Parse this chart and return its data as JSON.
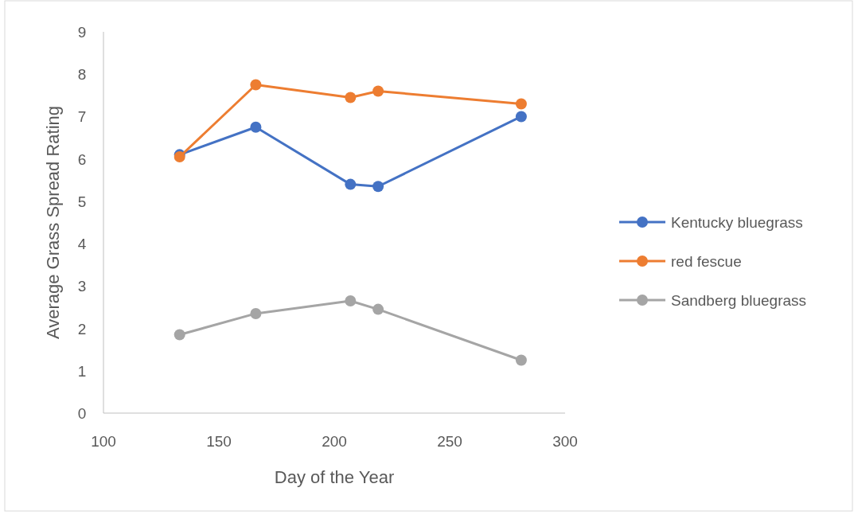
{
  "chart_data": {
    "type": "line",
    "xlabel": "Day of the Year",
    "ylabel": "Average Grass Spread Rating",
    "x": [
      133,
      166,
      207,
      219,
      281
    ],
    "series": [
      {
        "name": "Kentucky bluegrass",
        "color": "#4472c4",
        "values": [
          6.1,
          6.75,
          5.4,
          5.35,
          7.0
        ]
      },
      {
        "name": "red fescue",
        "color": "#ed7d31",
        "values": [
          6.05,
          7.75,
          7.45,
          7.6,
          7.3
        ]
      },
      {
        "name": "Sandberg bluegrass",
        "color": "#a5a5a5",
        "values": [
          1.85,
          2.35,
          2.65,
          2.45,
          1.25
        ]
      }
    ],
    "xlim": [
      100,
      300
    ],
    "xticks": [
      100,
      150,
      200,
      250,
      300
    ],
    "ylim": [
      0,
      9
    ],
    "yticks": [
      0,
      1,
      2,
      3,
      4,
      5,
      6,
      7,
      8,
      9
    ],
    "grid": false,
    "legend": "right",
    "marker": "circle",
    "line_style": "solid"
  }
}
